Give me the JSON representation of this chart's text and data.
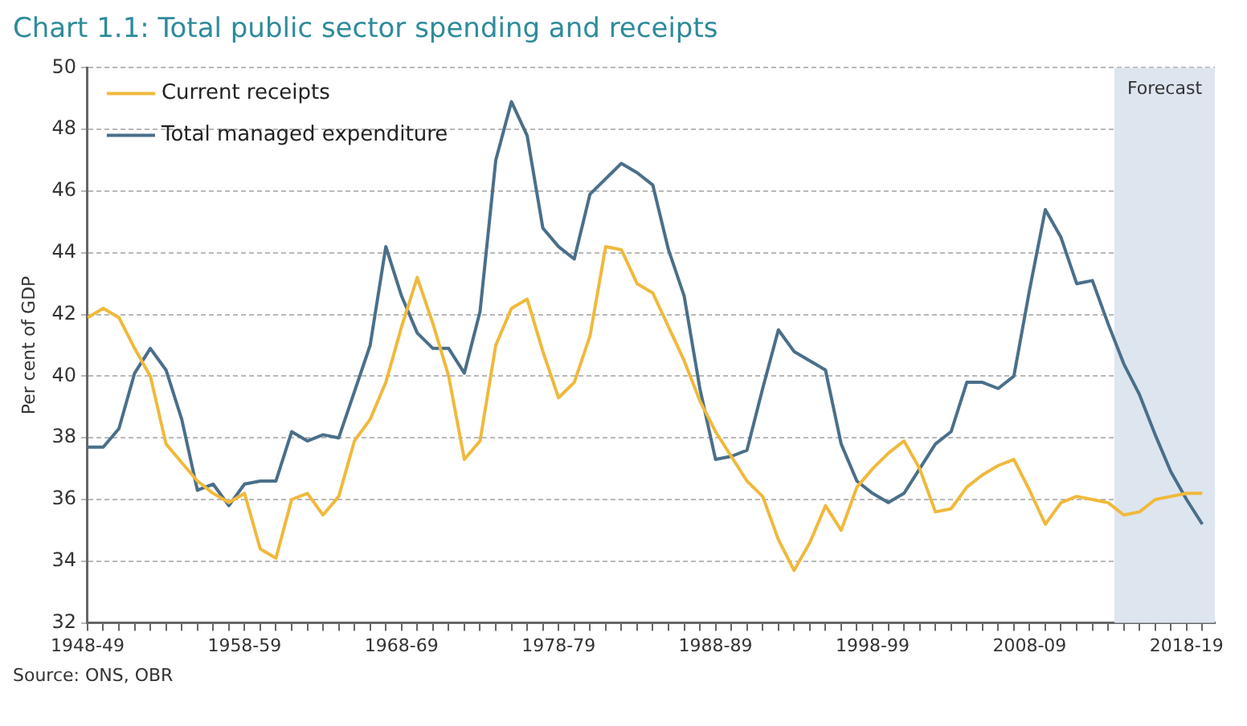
{
  "chart_data": {
    "type": "line",
    "title": "Chart 1.1:  Total public sector spending and receipts",
    "ylabel": "Per cent of GDP",
    "annotations": [
      "Source: ONS, OBR",
      "Forecast"
    ],
    "categories": [
      "1948-49",
      null,
      null,
      null,
      null,
      null,
      null,
      null,
      null,
      null,
      "1958-59",
      null,
      null,
      null,
      null,
      null,
      null,
      null,
      null,
      null,
      "1968-69",
      null,
      null,
      null,
      null,
      null,
      null,
      null,
      null,
      null,
      "1978-79",
      null,
      null,
      null,
      null,
      null,
      null,
      null,
      null,
      null,
      "1988-89",
      null,
      null,
      null,
      null,
      null,
      null,
      null,
      null,
      null,
      "1998-99",
      null,
      null,
      null,
      null,
      null,
      null,
      null,
      null,
      null,
      "2008-09",
      null,
      null,
      null,
      null,
      null,
      null,
      null,
      null,
      null,
      "2018-19",
      null
    ],
    "series": [
      {
        "name": "Current receipts",
        "color": "#f0b93c",
        "values": [
          41.9,
          42.2,
          41.9,
          40.9,
          40.0,
          37.8,
          37.2,
          36.6,
          36.2,
          35.9,
          36.2,
          34.4,
          34.1,
          36.0,
          36.2,
          35.5,
          36.1,
          37.9,
          38.6,
          39.8,
          41.6,
          43.2,
          41.7,
          40.0,
          37.3,
          37.9,
          41.0,
          42.2,
          42.5,
          40.8,
          39.3,
          39.8,
          41.3,
          44.2,
          44.1,
          43.0,
          42.7,
          41.6,
          40.5,
          39.2,
          38.2,
          37.4,
          36.6,
          36.1,
          34.7,
          33.7,
          34.6,
          35.8,
          35.0,
          36.4,
          37.0,
          37.5,
          37.9,
          37.0,
          35.6,
          35.7,
          36.4,
          36.8,
          37.1,
          37.3,
          36.3,
          35.2,
          35.9,
          36.1,
          36.0,
          35.9,
          35.5,
          35.6,
          36.0,
          36.1,
          36.2,
          36.2
        ]
      },
      {
        "name": "Total managed expenditure",
        "color": "#4a6f8a",
        "values": [
          37.7,
          37.7,
          38.3,
          40.1,
          40.9,
          40.2,
          38.6,
          36.3,
          36.5,
          35.8,
          36.5,
          36.6,
          36.6,
          38.2,
          37.9,
          38.1,
          38.0,
          39.5,
          41.0,
          44.2,
          42.6,
          41.4,
          40.9,
          40.9,
          40.1,
          42.1,
          47.0,
          48.9,
          47.8,
          44.8,
          44.2,
          43.8,
          45.9,
          46.4,
          46.9,
          46.6,
          46.2,
          44.1,
          42.6,
          39.6,
          37.3,
          37.4,
          37.6,
          39.6,
          41.5,
          40.8,
          40.5,
          40.2,
          37.8,
          36.6,
          36.2,
          35.9,
          36.2,
          37.0,
          37.8,
          38.2,
          39.8,
          39.8,
          39.6,
          40.0,
          42.8,
          45.4,
          44.5,
          43.0,
          43.1,
          41.7,
          40.4,
          39.4,
          38.1,
          36.9,
          36.0,
          35.2
        ]
      }
    ],
    "ylim": [
      32,
      50
    ],
    "yticks": [
      32,
      34,
      36,
      38,
      40,
      42,
      44,
      46,
      48,
      50
    ],
    "grid": "y",
    "legend": "top left",
    "marker": "none",
    "line_style": "solid"
  }
}
